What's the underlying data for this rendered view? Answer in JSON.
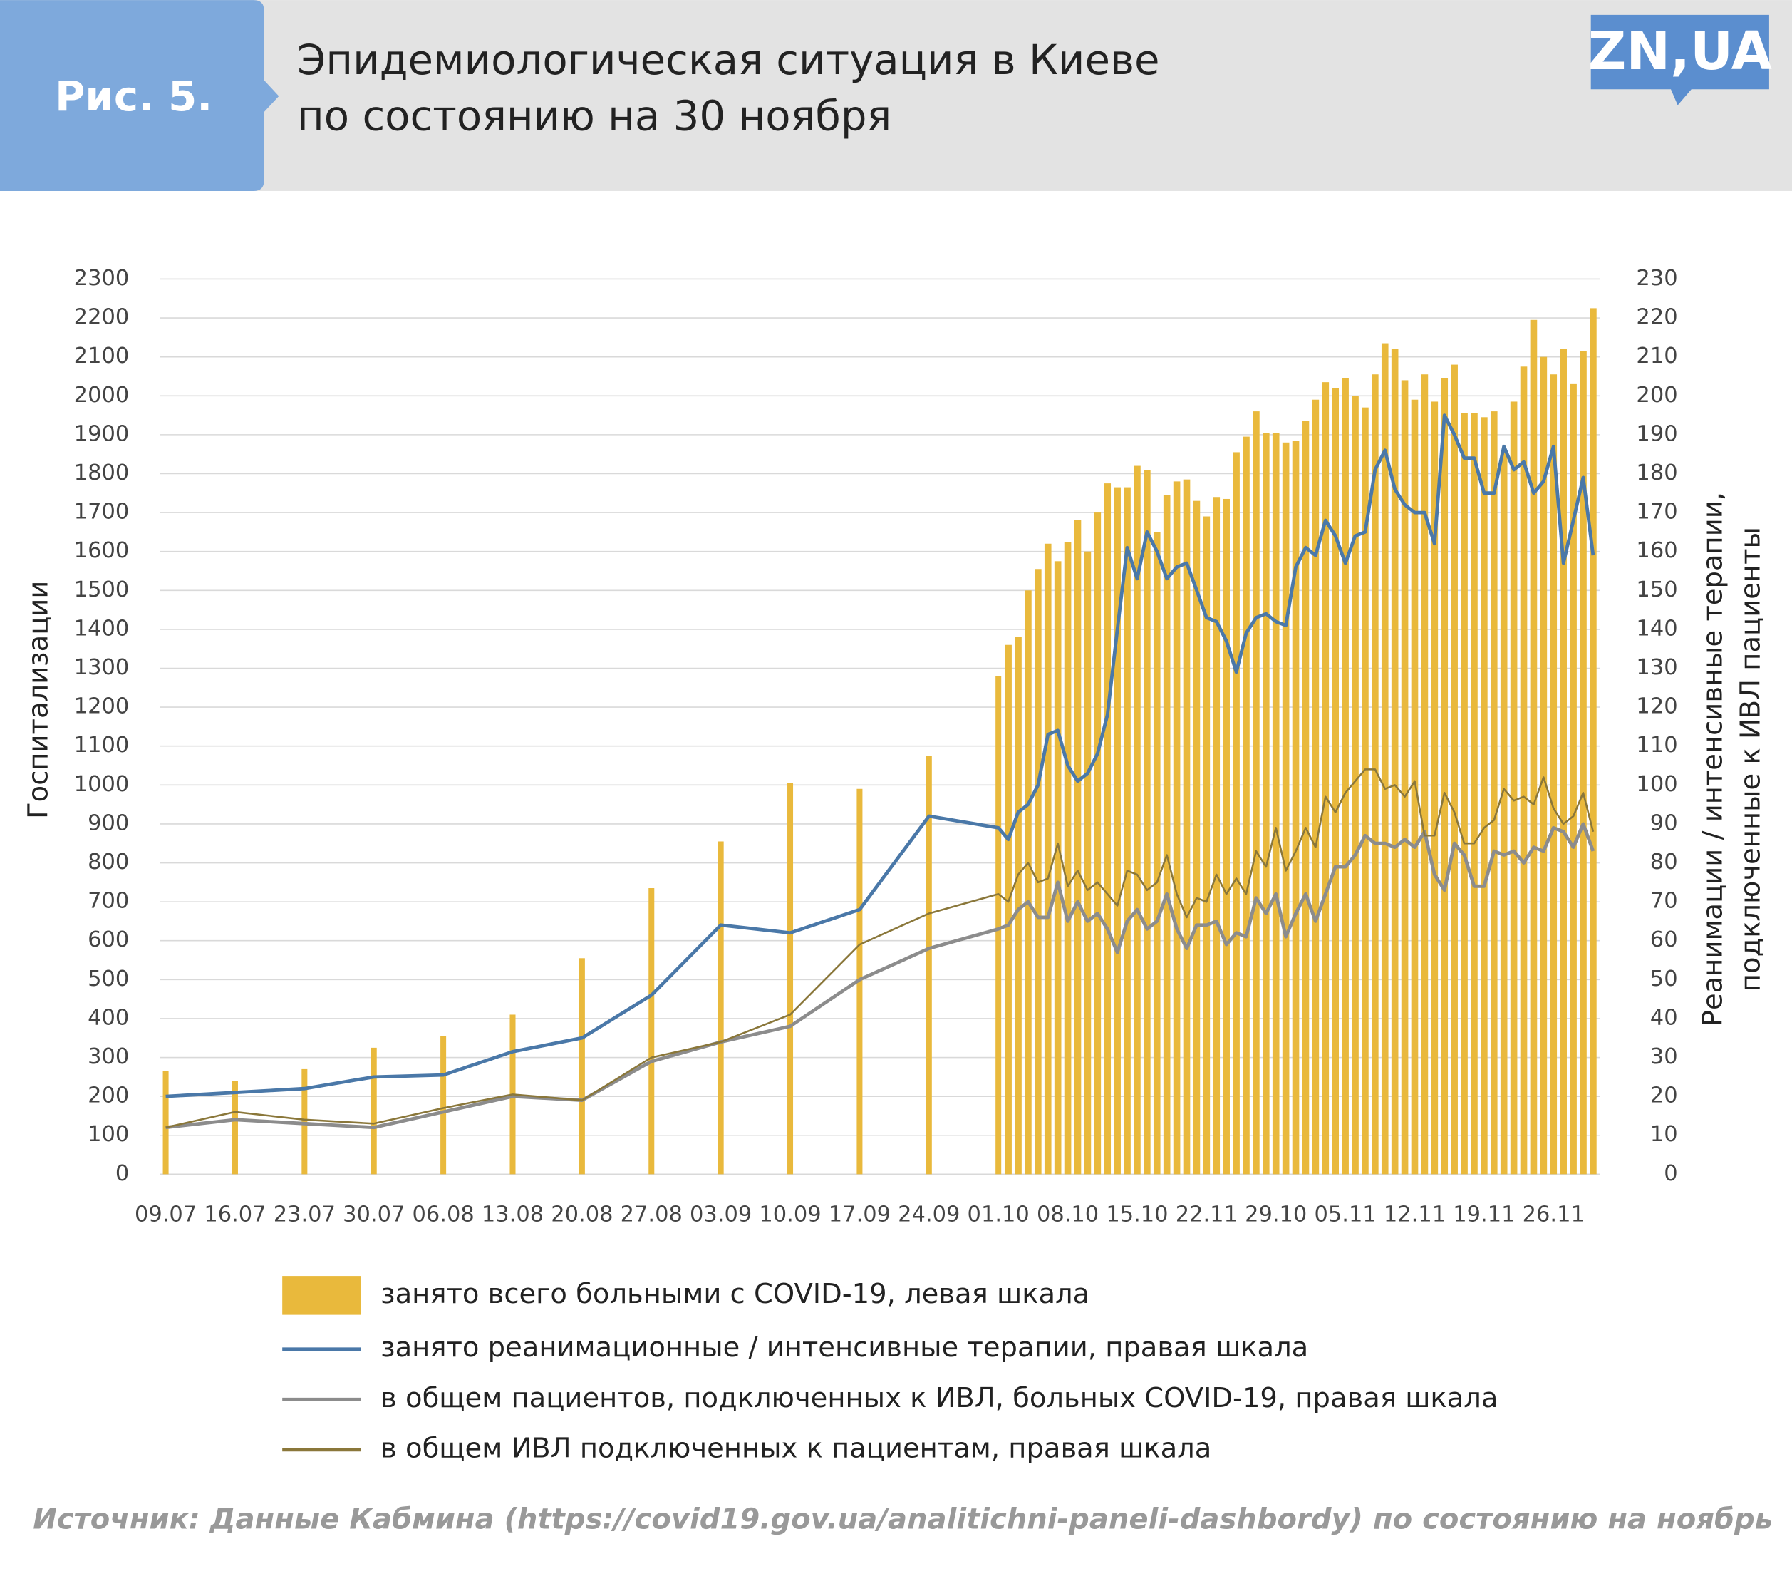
{
  "header": {
    "figure": "Рис. 5.",
    "title": [
      "Эпидемиологическая ситуация в Киеве",
      "по состоянию на 30 ноября"
    ],
    "logo": "ZN,UA"
  },
  "source": "Источник: Данные Кабмина (https://covid19.gov.ua/analitichni-paneli-dashbordy) по состоянию на ноябрь",
  "chart_data": {
    "type": "bar",
    "ylabel": "Госпитализации",
    "y2label": [
      "Реанимации / интенсивные терапии,",
      "подключенные к ИВЛ пациенты"
    ],
    "categories": [
      "09.07",
      "16.07",
      "23.07",
      "30.07",
      "06.08",
      "13.08",
      "20.08",
      "27.08",
      "03.09",
      "10.09",
      "17.09",
      "24.09",
      "01.10",
      null,
      null,
      null,
      null,
      null,
      null,
      "08.10",
      null,
      null,
      null,
      null,
      null,
      null,
      "15.10",
      null,
      null,
      null,
      null,
      null,
      null,
      "22.11",
      null,
      null,
      null,
      null,
      null,
      null,
      "29.10",
      null,
      null,
      null,
      null,
      null,
      null,
      "05.11",
      null,
      null,
      null,
      null,
      null,
      null,
      "12.11",
      null,
      null,
      null,
      null,
      null,
      null,
      "19.11",
      null,
      null,
      null,
      null,
      null,
      null,
      "26.11",
      null,
      null,
      null,
      null
    ],
    "ylim": [
      0,
      2300
    ],
    "yticks": [
      0,
      100,
      200,
      300,
      400,
      500,
      600,
      700,
      800,
      900,
      1000,
      1100,
      1200,
      1300,
      1400,
      1500,
      1600,
      1700,
      1800,
      1900,
      2000,
      2100,
      2200,
      2300
    ],
    "y2lim": [
      0,
      230
    ],
    "y2ticks": [
      0,
      10,
      20,
      30,
      40,
      50,
      60,
      70,
      80,
      90,
      100,
      110,
      120,
      130,
      140,
      150,
      160,
      170,
      180,
      190,
      200,
      210,
      220,
      230
    ],
    "grid": true,
    "series": [
      {
        "name": "занято всего больными с COVID-19, левая шкала",
        "type": "bar",
        "axis": "y",
        "color": "#e9b93c",
        "values": [
          265,
          240,
          270,
          325,
          355,
          410,
          555,
          735,
          855,
          1005,
          990,
          1075,
          1280,
          1360,
          1380,
          1500,
          1555,
          1620,
          1575,
          1625,
          1680,
          1600,
          1700,
          1775,
          1765,
          1765,
          1820,
          1810,
          1650,
          1745,
          1780,
          1785,
          1730,
          1690,
          1740,
          1735,
          1855,
          1895,
          1960,
          1905,
          1905,
          1880,
          1885,
          1935,
          1990,
          2035,
          2020,
          2045,
          2000,
          1970,
          2055,
          2135,
          2120,
          2040,
          1990,
          2055,
          1985,
          2045,
          2080,
          1955,
          1955,
          1945,
          1960,
          1855,
          1985,
          2075,
          2195,
          2100,
          2055,
          2120,
          2030,
          2115,
          2225
        ]
      },
      {
        "name": "занято реанимационные / интенсивные терапии, правая шкала",
        "type": "line",
        "axis": "y2",
        "color": "#4a78a8",
        "width": 3,
        "values": [
          20,
          21,
          22,
          25,
          25.5,
          31.5,
          35,
          46,
          64,
          62,
          68,
          92,
          89,
          86,
          93,
          95,
          100,
          113,
          114,
          105,
          101,
          103,
          108,
          118,
          140,
          161,
          153,
          165,
          160,
          153,
          156,
          157,
          150,
          143,
          142,
          137,
          129,
          139,
          143,
          144,
          142,
          141,
          156,
          161,
          159,
          168,
          164,
          157,
          164,
          165,
          181,
          186,
          176,
          172,
          170,
          170,
          162,
          195,
          190,
          184,
          184,
          175,
          175,
          187,
          181,
          183,
          175,
          178,
          187,
          157,
          168,
          179,
          159
        ]
      },
      {
        "name": "в общем пациентов, подключенных к ИВЛ, больных COVID-19, правая шкала",
        "type": "line",
        "axis": "y2",
        "color": "#8c8c8c",
        "width": 3,
        "values": [
          12,
          14,
          13,
          12,
          16,
          20,
          19,
          29,
          34,
          38,
          50,
          58,
          63,
          64,
          68,
          70,
          66,
          66,
          75,
          65,
          70,
          65,
          67,
          63,
          57,
          65,
          68,
          63,
          65,
          72,
          63,
          58,
          64,
          64,
          65,
          59,
          62,
          61,
          71,
          67,
          72,
          61,
          67,
          72,
          65,
          72,
          79,
          79,
          82,
          87,
          85,
          85,
          84,
          86,
          84,
          88,
          77,
          73,
          85,
          82,
          74,
          74,
          83,
          82,
          83,
          80,
          84,
          83,
          89,
          88,
          84,
          90,
          83
        ]
      },
      {
        "name": "в общем ИВЛ подключенных к пациентам, правая шкала",
        "type": "line",
        "axis": "y2",
        "color": "#8a773a",
        "width": 1.6,
        "values": [
          12,
          16,
          14,
          13,
          17,
          20.5,
          19,
          30,
          34,
          41,
          59,
          67,
          72,
          70,
          77,
          80,
          75,
          76,
          85,
          74,
          78,
          73,
          75,
          72,
          69,
          78,
          77,
          73,
          75,
          82,
          72,
          66,
          71,
          70,
          77,
          72,
          76,
          72,
          83,
          79,
          89,
          78,
          83,
          89,
          84,
          97,
          93,
          98,
          101,
          104,
          104,
          99,
          100,
          97,
          101,
          87,
          87,
          98,
          93,
          85,
          85,
          89,
          91,
          99,
          96,
          97,
          95,
          102,
          94,
          90,
          92,
          98,
          88
        ]
      }
    ]
  }
}
